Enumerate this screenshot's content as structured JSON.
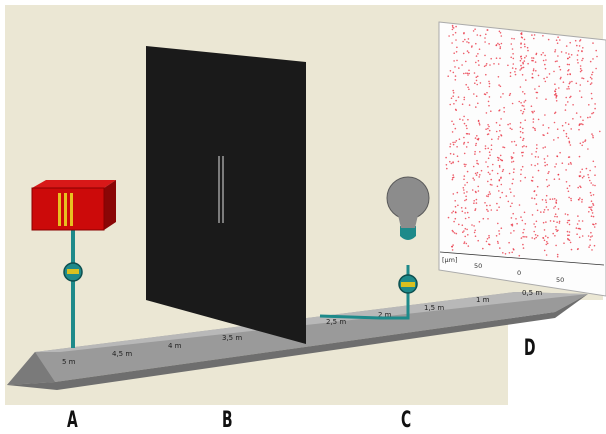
{
  "labels": [
    "A",
    "B",
    "C",
    "D"
  ],
  "bench_scale": [
    "5 m",
    "4,5 m",
    "4 m",
    "3,5 m",
    "2,5 m",
    "2 m",
    "1,5 m",
    "1 m",
    "0,5 m"
  ],
  "screen": {
    "axis_unit": "[μm]",
    "axis_ticks": [
      "50",
      "0",
      "50"
    ]
  },
  "colors": {
    "background": "#ebe7d4",
    "laser_body": "#cc0a0a",
    "laser_stripes": "#e8c020",
    "stand": "#1e8a8a",
    "barrier": "#1a1a1a",
    "bench": "#8c8c8c",
    "pattern": "#e8283a"
  }
}
